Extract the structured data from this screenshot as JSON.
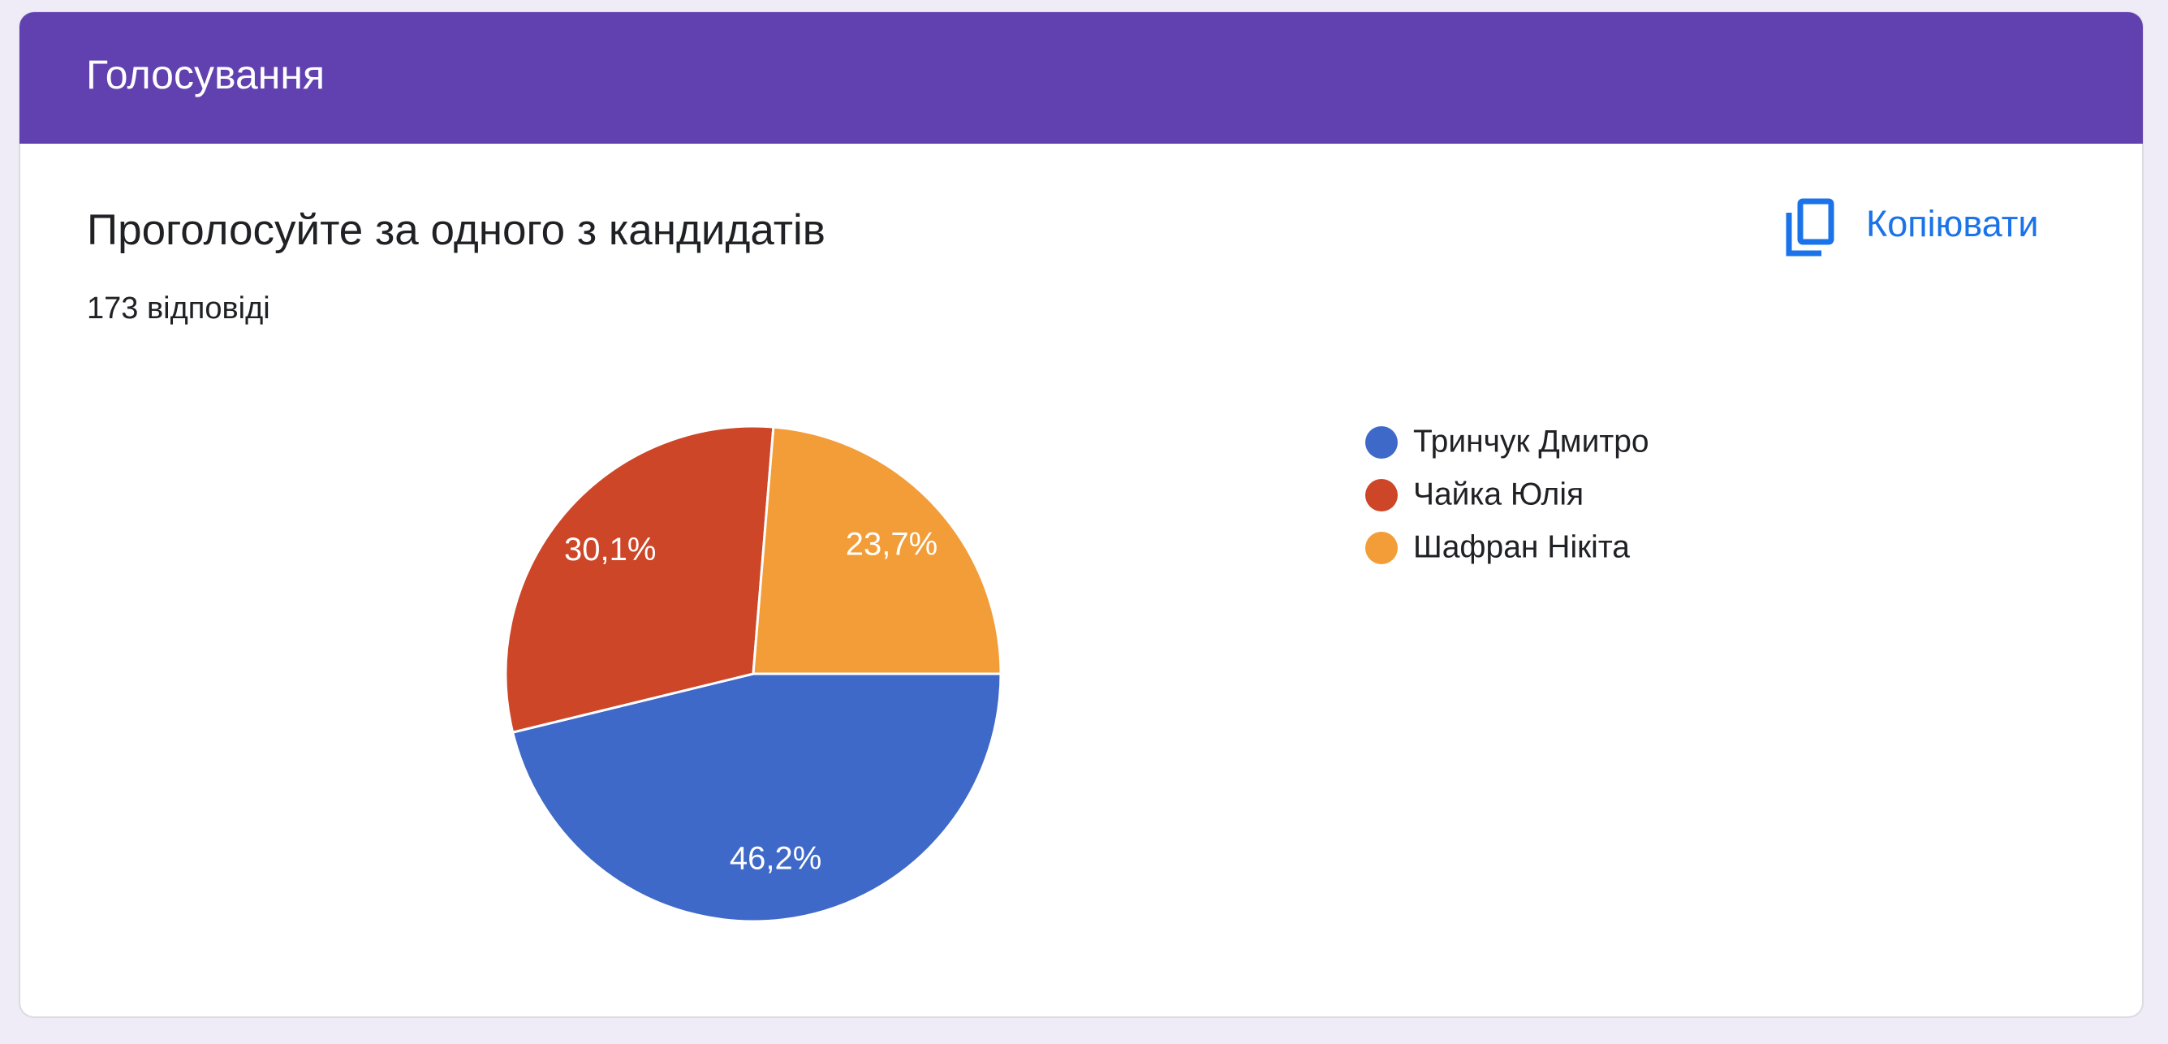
{
  "header": {
    "title": "Голосування"
  },
  "copy_button": {
    "label": "Копіювати"
  },
  "chart_data": {
    "type": "pie",
    "title": "Проголосуйте за одного з кандидатів",
    "subtitle": "173 відповіді",
    "categories": [
      "Тринчук Дмитро",
      "Чайка Юлія",
      "Шафран Нікіта"
    ],
    "values": [
      46.2,
      30.1,
      23.7
    ],
    "value_labels": [
      "46,2%",
      "30,1%",
      "23,7%"
    ],
    "colors": [
      "#3f69c8",
      "#cd4628",
      "#f29d38"
    ],
    "legend": "right"
  }
}
